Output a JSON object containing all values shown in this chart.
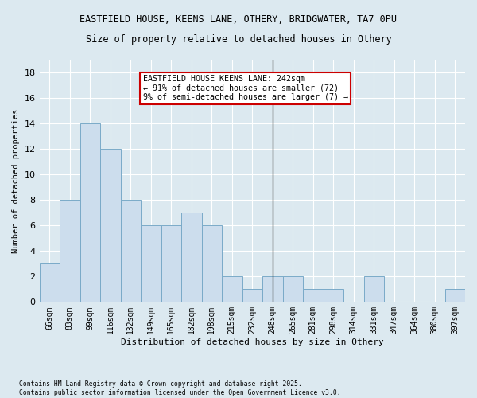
{
  "title1": "EASTFIELD HOUSE, KEENS LANE, OTHERY, BRIDGWATER, TA7 0PU",
  "title2": "Size of property relative to detached houses in Othery",
  "xlabel": "Distribution of detached houses by size in Othery",
  "ylabel": "Number of detached properties",
  "categories": [
    "66sqm",
    "83sqm",
    "99sqm",
    "116sqm",
    "132sqm",
    "149sqm",
    "165sqm",
    "182sqm",
    "198sqm",
    "215sqm",
    "232sqm",
    "248sqm",
    "265sqm",
    "281sqm",
    "298sqm",
    "314sqm",
    "331sqm",
    "347sqm",
    "364sqm",
    "380sqm",
    "397sqm"
  ],
  "values": [
    3,
    8,
    14,
    12,
    8,
    6,
    6,
    7,
    6,
    2,
    1,
    2,
    2,
    1,
    1,
    0,
    2,
    0,
    0,
    0,
    1
  ],
  "bar_color": "#ccdded",
  "bar_edge_color": "#7aaac8",
  "vline_index": 11,
  "annotation_text": "EASTFIELD HOUSE KEENS LANE: 242sqm\n← 91% of detached houses are smaller (72)\n9% of semi-detached houses are larger (7) →",
  "annotation_box_color": "#ffffff",
  "annotation_border_color": "#cc0000",
  "vline_color": "#444444",
  "ylim": [
    0,
    19
  ],
  "yticks": [
    0,
    2,
    4,
    6,
    8,
    10,
    12,
    14,
    16,
    18
  ],
  "footer_text": "Contains HM Land Registry data © Crown copyright and database right 2025.\nContains public sector information licensed under the Open Government Licence v3.0.",
  "background_color": "#dce9f0",
  "plot_background_color": "#dce9f0",
  "title_fontsize": 8.5,
  "subtitle_fontsize": 8.5
}
